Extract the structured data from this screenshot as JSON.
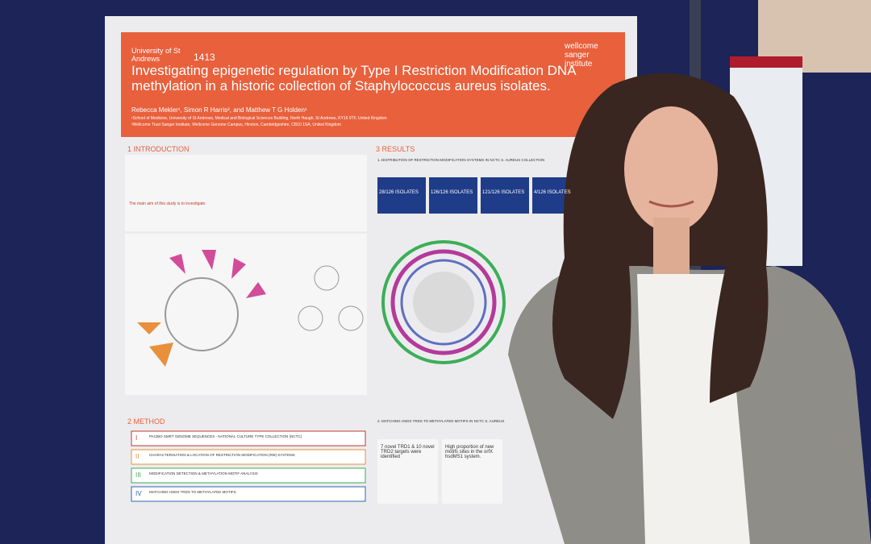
{
  "poster": {
    "university": "University of St Andrews",
    "founded": "1413",
    "institute": "wellcome sanger institute",
    "title": "Investigating epigenetic regulation by Type I Restriction Modification DNA methylation in a historic collection of Staphylococcus aureus isolates.",
    "authors": "Rebecca Mekler¹, Simon R Harris², and Matthew T G Holden¹",
    "affiliations": [
      "¹School of Medicine, University of St Andrews, Medical and Biological Sciences Building, North Haugh, St Andrews, KY16 9TF, United Kingdom",
      "²Wellcome Trust Sanger Institute, Wellcome Genome Campus, Hinxton, Cambridgeshire, CB10 1SA, United Kingdom"
    ],
    "introduction": {
      "heading": "1 INTRODUCTION",
      "aims_heading": "The main aim of this study is to investigate:"
    },
    "method": {
      "heading": "2 METHOD",
      "steps": [
        {
          "numeral": "I",
          "label": "PACBIO SMRT GENOME SEQUENCES - NATIONAL CULTURE TYPE COLLECTION (NCTC)"
        },
        {
          "numeral": "II",
          "label": "CHARACTERISATION & LOCATION OF RESTRICTION MODIFICATION (RM) SYSTEMS"
        },
        {
          "numeral": "III",
          "label": "MODIFICATION DETECTION & METHYLATION MOTIF ANALYSIS"
        },
        {
          "numeral": "IV",
          "label": "MATCHING HSDS TRDS TO METHYLATED MOTIFS"
        }
      ]
    },
    "results": {
      "heading": "3 RESULTS",
      "subheading_1": "1. DISTRIBUTION OF RESTRICTION MODIFICATION SYSTEMS IN NCTC S. AUREUS COLLECTION",
      "isolates": [
        "28/126 ISOLATES",
        "126/126 ISOLATES",
        "121/126 ISOLATES",
        "4/126 ISOLATES"
      ],
      "subheading_2": "2. MATCHING HSDS TRDS TO METHYLATED MOTIFS IN NCTC S. AUREUS",
      "findings": [
        "7 novel TRD1 & 10 novel TRD2 targets were identified",
        "High proportion of new motifs sites in the orfX hsdMS1 system."
      ]
    }
  }
}
